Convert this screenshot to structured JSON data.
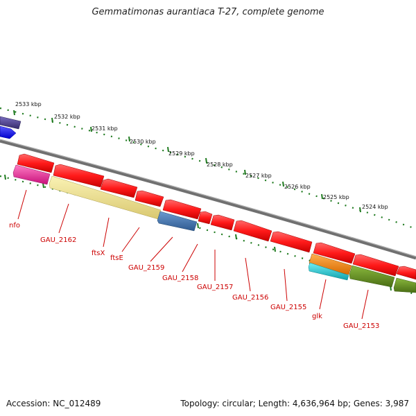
{
  "title": "Gemmatimonas aurantiaca T-27, complete genome",
  "footer": {
    "accession": "Accession: NC_012489",
    "summary": "Topology: circular; Length: 4,636,964 bp; Genes: 3,987"
  },
  "colors": {
    "backbone": "#808080",
    "tick": "#1e7a1e",
    "label": "#cc0000",
    "red_gene": "#ff1a1a",
    "pink_gene": "#e8178a",
    "yellow_gene": "#f2e68c",
    "blue_gene": "#3f74b0",
    "purple_gene": "#4a3f8a",
    "bright_blue_gene": "#1a1aff",
    "orange_gene": "#ff8c00",
    "cyan_gene": "#19c8d2",
    "olive_gene": "#5f8a1e"
  },
  "scale_ticks": [
    "2533 kbp",
    "2532 kbp",
    "2531 kbp",
    "2530 kbp",
    "2529 kbp",
    "2528 kbp",
    "2527 kbp",
    "2526 kbp",
    "2525 kbp",
    "2524 kbp"
  ],
  "gene_labels": [
    "nfo",
    "GAU_2162",
    "ftsX",
    "ftsE",
    "GAU_2159",
    "GAU_2158",
    "GAU_2157",
    "GAU_2156",
    "GAU_2155",
    "glk",
    "GAU_2153"
  ]
}
